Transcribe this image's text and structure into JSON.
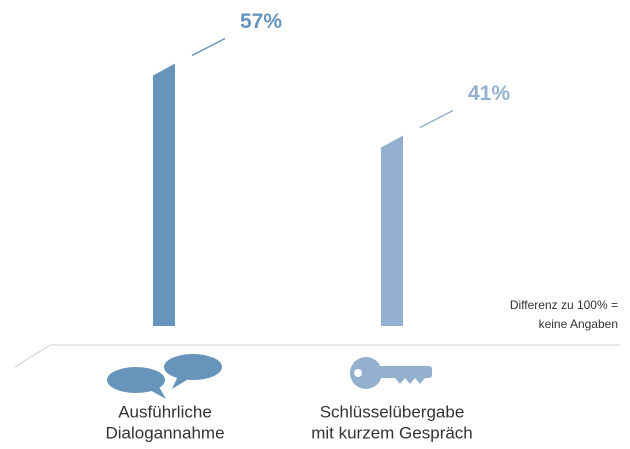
{
  "chart_data": {
    "type": "bar",
    "categories": [
      [
        "Ausführliche",
        "Dialogannahme"
      ],
      [
        "Schlüsselübergabe",
        "mit kurzem Gespräch"
      ]
    ],
    "values": [
      57,
      41
    ],
    "value_labels": [
      "57%",
      "41%"
    ],
    "colors": [
      "#6794bb",
      "#93b1cf"
    ],
    "note": [
      "Differenz zu 100% =",
      "keine Angaben"
    ]
  }
}
